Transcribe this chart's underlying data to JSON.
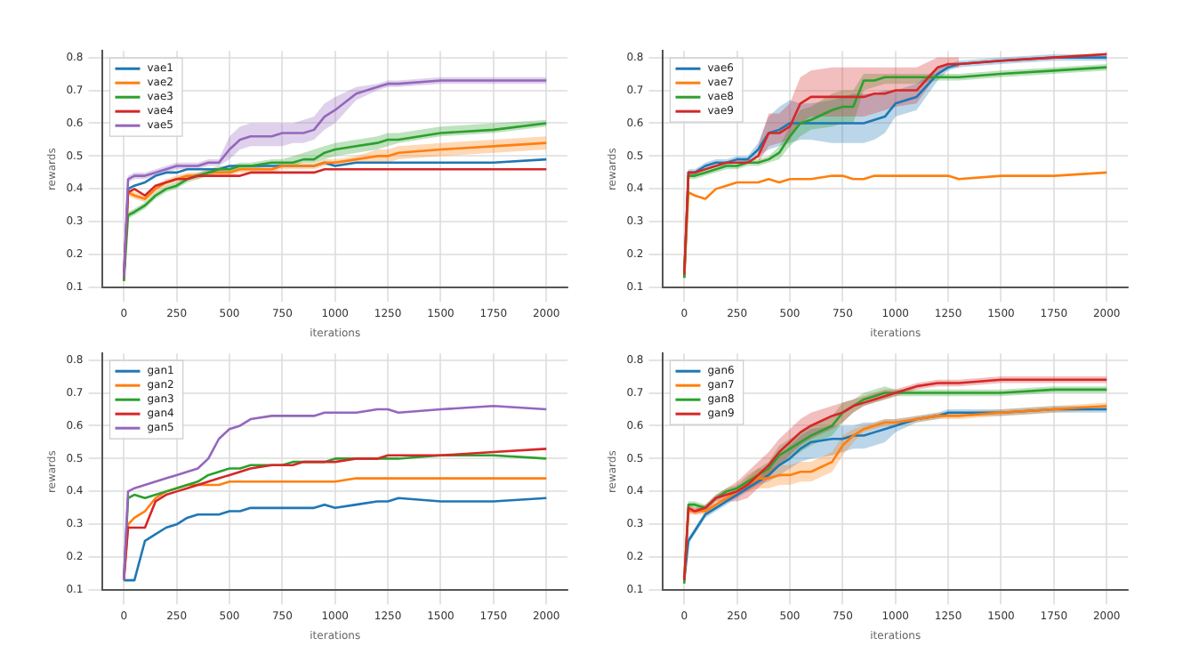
{
  "chart_data": [
    {
      "type": "line",
      "xlabel": "iterations",
      "ylabel": "rewards",
      "xlim": [
        -100,
        2100
      ],
      "ylim": [
        0.1,
        0.82
      ],
      "xticks": [
        0,
        250,
        500,
        750,
        1000,
        1250,
        1500,
        1750,
        2000
      ],
      "yticks": [
        0.1,
        0.2,
        0.3,
        0.4,
        0.5,
        0.6,
        0.7,
        0.8
      ],
      "grid": true,
      "legend": "top left",
      "marker": "none",
      "line_style": "solid",
      "x": [
        0,
        20,
        50,
        100,
        150,
        200,
        250,
        300,
        350,
        400,
        450,
        500,
        550,
        600,
        700,
        750,
        800,
        850,
        900,
        950,
        1000,
        1100,
        1200,
        1250,
        1300,
        1500,
        1750,
        2000
      ],
      "series": [
        {
          "name": "vae1",
          "color": "#1f77b4",
          "values": [
            0.13,
            0.4,
            0.41,
            0.42,
            0.44,
            0.45,
            0.45,
            0.46,
            0.46,
            0.46,
            0.46,
            0.47,
            0.47,
            0.47,
            0.47,
            0.47,
            0.47,
            0.47,
            0.47,
            0.48,
            0.47,
            0.48,
            0.48,
            0.48,
            0.48,
            0.48,
            0.48,
            0.49
          ]
        },
        {
          "name": "vae2",
          "color": "#ff7f0e",
          "values": [
            0.12,
            0.39,
            0.38,
            0.37,
            0.4,
            0.42,
            0.43,
            0.44,
            0.44,
            0.45,
            0.45,
            0.45,
            0.46,
            0.46,
            0.46,
            0.47,
            0.47,
            0.47,
            0.47,
            0.48,
            0.48,
            0.49,
            0.5,
            0.5,
            0.51,
            0.52,
            0.53,
            0.54
          ],
          "lower": [
            null,
            0.38,
            0.37,
            0.36,
            0.39,
            0.41,
            0.42,
            0.43,
            0.43,
            0.44,
            0.44,
            0.44,
            0.45,
            0.45,
            0.45,
            0.46,
            0.46,
            0.46,
            0.46,
            0.47,
            0.47,
            0.48,
            0.48,
            0.48,
            0.49,
            0.5,
            0.51,
            0.52
          ],
          "upper": [
            null,
            0.4,
            0.39,
            0.38,
            0.41,
            0.43,
            0.44,
            0.45,
            0.45,
            0.46,
            0.46,
            0.46,
            0.47,
            0.47,
            0.47,
            0.48,
            0.48,
            0.48,
            0.48,
            0.49,
            0.49,
            0.5,
            0.52,
            0.52,
            0.53,
            0.54,
            0.55,
            0.56
          ]
        },
        {
          "name": "vae3",
          "color": "#2ca02c",
          "values": [
            0.12,
            0.32,
            0.33,
            0.35,
            0.38,
            0.4,
            0.41,
            0.43,
            0.44,
            0.45,
            0.46,
            0.46,
            0.47,
            0.47,
            0.48,
            0.48,
            0.48,
            0.49,
            0.49,
            0.51,
            0.52,
            0.53,
            0.54,
            0.55,
            0.55,
            0.57,
            0.58,
            0.6
          ],
          "lower": [
            null,
            0.31,
            0.32,
            0.34,
            0.37,
            0.39,
            0.4,
            0.42,
            0.43,
            0.44,
            0.45,
            0.45,
            0.46,
            0.46,
            0.47,
            0.47,
            0.47,
            0.48,
            0.48,
            0.49,
            0.5,
            0.51,
            0.52,
            0.53,
            0.54,
            0.56,
            0.57,
            0.59
          ],
          "upper": [
            null,
            0.33,
            0.34,
            0.36,
            0.39,
            0.41,
            0.42,
            0.44,
            0.45,
            0.46,
            0.47,
            0.47,
            0.48,
            0.48,
            0.49,
            0.49,
            0.5,
            0.51,
            0.52,
            0.53,
            0.54,
            0.55,
            0.56,
            0.57,
            0.57,
            0.59,
            0.6,
            0.61
          ]
        },
        {
          "name": "vae4",
          "color": "#d62728",
          "values": [
            0.13,
            0.39,
            0.4,
            0.38,
            0.41,
            0.42,
            0.43,
            0.43,
            0.44,
            0.44,
            0.44,
            0.44,
            0.44,
            0.45,
            0.45,
            0.45,
            0.45,
            0.45,
            0.45,
            0.46,
            0.46,
            0.46,
            0.46,
            0.46,
            0.46,
            0.46,
            0.46,
            0.46
          ]
        },
        {
          "name": "vae5",
          "color": "#9467bd",
          "values": [
            0.13,
            0.43,
            0.44,
            0.44,
            0.45,
            0.46,
            0.47,
            0.47,
            0.47,
            0.48,
            0.48,
            0.52,
            0.55,
            0.56,
            0.56,
            0.57,
            0.57,
            0.57,
            0.58,
            0.62,
            0.64,
            0.69,
            0.71,
            0.72,
            0.72,
            0.73,
            0.73,
            0.73
          ],
          "lower": [
            null,
            0.42,
            0.43,
            0.43,
            0.44,
            0.45,
            0.46,
            0.46,
            0.46,
            0.47,
            0.47,
            0.49,
            0.52,
            0.53,
            0.53,
            0.53,
            0.54,
            0.54,
            0.55,
            0.58,
            0.6,
            0.67,
            0.7,
            0.71,
            0.71,
            0.72,
            0.72,
            0.72
          ],
          "upper": [
            null,
            0.44,
            0.45,
            0.45,
            0.46,
            0.47,
            0.48,
            0.48,
            0.48,
            0.49,
            0.49,
            0.56,
            0.59,
            0.6,
            0.6,
            0.6,
            0.6,
            0.61,
            0.62,
            0.66,
            0.68,
            0.71,
            0.72,
            0.73,
            0.73,
            0.74,
            0.74,
            0.74
          ]
        }
      ]
    },
    {
      "type": "line",
      "xlabel": "iterations",
      "ylabel": "rewards",
      "xlim": [
        -100,
        2100
      ],
      "ylim": [
        0.1,
        0.82
      ],
      "xticks": [
        0,
        250,
        500,
        750,
        1000,
        1250,
        1500,
        1750,
        2000
      ],
      "yticks": [
        0.1,
        0.2,
        0.3,
        0.4,
        0.5,
        0.6,
        0.7,
        0.8
      ],
      "grid": true,
      "legend": "top left",
      "marker": "none",
      "line_style": "solid",
      "x": [
        0,
        20,
        50,
        100,
        150,
        200,
        250,
        300,
        350,
        400,
        450,
        500,
        550,
        600,
        700,
        750,
        800,
        850,
        900,
        950,
        1000,
        1100,
        1200,
        1250,
        1300,
        1500,
        1750,
        2000
      ],
      "series": [
        {
          "name": "vae6",
          "color": "#1f77b4",
          "values": [
            0.13,
            0.45,
            0.45,
            0.47,
            0.48,
            0.48,
            0.49,
            0.49,
            0.52,
            0.57,
            0.58,
            0.6,
            0.6,
            0.6,
            0.6,
            0.6,
            0.6,
            0.6,
            0.61,
            0.62,
            0.66,
            0.68,
            0.75,
            0.77,
            0.78,
            0.79,
            0.8,
            0.8
          ],
          "lower": [
            null,
            0.44,
            0.44,
            0.46,
            0.47,
            0.47,
            0.48,
            0.48,
            0.5,
            0.52,
            0.53,
            0.54,
            0.55,
            0.55,
            0.54,
            0.54,
            0.54,
            0.54,
            0.55,
            0.57,
            0.62,
            0.64,
            0.73,
            0.76,
            0.77,
            0.78,
            0.79,
            0.79
          ],
          "upper": [
            null,
            0.46,
            0.46,
            0.48,
            0.49,
            0.49,
            0.5,
            0.5,
            0.54,
            0.62,
            0.65,
            0.67,
            0.66,
            0.66,
            0.67,
            0.68,
            0.69,
            0.69,
            0.69,
            0.7,
            0.7,
            0.72,
            0.77,
            0.78,
            0.79,
            0.8,
            0.81,
            0.81
          ]
        },
        {
          "name": "vae7",
          "color": "#ff7f0e",
          "values": [
            0.13,
            0.39,
            0.38,
            0.37,
            0.4,
            0.41,
            0.42,
            0.42,
            0.42,
            0.43,
            0.42,
            0.43,
            0.43,
            0.43,
            0.44,
            0.44,
            0.43,
            0.43,
            0.44,
            0.44,
            0.44,
            0.44,
            0.44,
            0.44,
            0.43,
            0.44,
            0.44,
            0.45
          ]
        },
        {
          "name": "vae8",
          "color": "#2ca02c",
          "values": [
            0.13,
            0.44,
            0.44,
            0.45,
            0.46,
            0.47,
            0.47,
            0.48,
            0.48,
            0.49,
            0.51,
            0.56,
            0.6,
            0.61,
            0.64,
            0.65,
            0.65,
            0.73,
            0.73,
            0.74,
            0.74,
            0.74,
            0.74,
            0.74,
            0.74,
            0.75,
            0.76,
            0.77
          ],
          "lower": [
            null,
            0.43,
            0.43,
            0.44,
            0.45,
            0.46,
            0.46,
            0.47,
            0.47,
            0.48,
            0.49,
            0.53,
            0.56,
            0.58,
            0.59,
            0.6,
            0.6,
            0.7,
            0.71,
            0.72,
            0.72,
            0.72,
            0.73,
            0.73,
            0.73,
            0.74,
            0.75,
            0.76
          ],
          "upper": [
            null,
            0.45,
            0.45,
            0.46,
            0.47,
            0.48,
            0.48,
            0.49,
            0.49,
            0.5,
            0.53,
            0.59,
            0.64,
            0.65,
            0.69,
            0.7,
            0.7,
            0.75,
            0.75,
            0.75,
            0.75,
            0.75,
            0.75,
            0.75,
            0.75,
            0.76,
            0.77,
            0.78
          ]
        },
        {
          "name": "vae9",
          "color": "#d62728",
          "values": [
            0.14,
            0.45,
            0.45,
            0.46,
            0.47,
            0.48,
            0.48,
            0.48,
            0.5,
            0.57,
            0.57,
            0.59,
            0.66,
            0.68,
            0.68,
            0.68,
            0.68,
            0.68,
            0.69,
            0.69,
            0.7,
            0.7,
            0.77,
            0.78,
            0.78,
            0.79,
            0.8,
            0.81
          ],
          "lower": [
            null,
            null,
            null,
            null,
            null,
            null,
            null,
            null,
            0.48,
            0.53,
            0.54,
            0.55,
            0.6,
            0.62,
            0.62,
            0.62,
            0.62,
            0.62,
            0.63,
            0.64,
            0.65,
            0.66,
            0.75,
            0.77,
            0.77,
            null,
            null,
            null
          ],
          "upper": [
            null,
            null,
            null,
            null,
            null,
            null,
            null,
            null,
            0.53,
            0.63,
            0.63,
            0.66,
            0.74,
            0.76,
            0.77,
            0.77,
            0.77,
            0.77,
            0.77,
            0.77,
            0.77,
            0.77,
            0.8,
            0.8,
            0.8,
            null,
            null,
            null
          ]
        }
      ]
    },
    {
      "type": "line",
      "xlabel": "iterations",
      "ylabel": "rewards",
      "xlim": [
        -100,
        2100
      ],
      "ylim": [
        0.1,
        0.82
      ],
      "xticks": [
        0,
        250,
        500,
        750,
        1000,
        1250,
        1500,
        1750,
        2000
      ],
      "yticks": [
        0.1,
        0.2,
        0.3,
        0.4,
        0.5,
        0.6,
        0.7,
        0.8
      ],
      "grid": true,
      "legend": "top left",
      "marker": "none",
      "line_style": "solid",
      "x": [
        0,
        20,
        50,
        100,
        150,
        200,
        250,
        300,
        350,
        400,
        450,
        500,
        550,
        600,
        700,
        750,
        800,
        850,
        900,
        950,
        1000,
        1100,
        1200,
        1250,
        1300,
        1500,
        1750,
        2000
      ],
      "series": [
        {
          "name": "gan1",
          "color": "#1f77b4",
          "values": [
            0.13,
            0.13,
            0.13,
            0.25,
            0.27,
            0.29,
            0.3,
            0.32,
            0.33,
            0.33,
            0.33,
            0.34,
            0.34,
            0.35,
            0.35,
            0.35,
            0.35,
            0.35,
            0.35,
            0.36,
            0.35,
            0.36,
            0.37,
            0.37,
            0.38,
            0.37,
            0.37,
            0.38
          ]
        },
        {
          "name": "gan2",
          "color": "#ff7f0e",
          "values": [
            0.13,
            0.3,
            0.32,
            0.34,
            0.38,
            0.4,
            0.41,
            0.42,
            0.42,
            0.42,
            0.42,
            0.43,
            0.43,
            0.43,
            0.43,
            0.43,
            0.43,
            0.43,
            0.43,
            0.43,
            0.43,
            0.44,
            0.44,
            0.44,
            0.44,
            0.44,
            0.44,
            0.44
          ]
        },
        {
          "name": "gan3",
          "color": "#2ca02c",
          "values": [
            0.13,
            0.38,
            0.39,
            0.38,
            0.39,
            0.4,
            0.41,
            0.42,
            0.43,
            0.45,
            0.46,
            0.47,
            0.47,
            0.48,
            0.48,
            0.48,
            0.49,
            0.49,
            0.49,
            0.49,
            0.5,
            0.5,
            0.5,
            0.5,
            0.5,
            0.51,
            0.51,
            0.5
          ]
        },
        {
          "name": "gan4",
          "color": "#d62728",
          "values": [
            0.13,
            0.29,
            0.29,
            0.29,
            0.37,
            0.39,
            0.4,
            0.41,
            0.42,
            0.43,
            0.44,
            0.45,
            0.46,
            0.47,
            0.48,
            0.48,
            0.48,
            0.49,
            0.49,
            0.49,
            0.49,
            0.5,
            0.5,
            0.51,
            0.51,
            0.51,
            0.52,
            0.53
          ]
        },
        {
          "name": "gan5",
          "color": "#9467bd",
          "values": [
            0.13,
            0.4,
            0.41,
            0.42,
            0.43,
            0.44,
            0.45,
            0.46,
            0.47,
            0.5,
            0.56,
            0.59,
            0.6,
            0.62,
            0.63,
            0.63,
            0.63,
            0.63,
            0.63,
            0.64,
            0.64,
            0.64,
            0.65,
            0.65,
            0.64,
            0.65,
            0.66,
            0.65
          ]
        }
      ]
    },
    {
      "type": "line",
      "xlabel": "iterations",
      "ylabel": "rewards",
      "xlim": [
        -100,
        2100
      ],
      "ylim": [
        0.1,
        0.82
      ],
      "xticks": [
        0,
        250,
        500,
        750,
        1000,
        1250,
        1500,
        1750,
        2000
      ],
      "yticks": [
        0.1,
        0.2,
        0.3,
        0.4,
        0.5,
        0.6,
        0.7,
        0.8
      ],
      "grid": true,
      "legend": "top left",
      "marker": "none",
      "line_style": "solid",
      "x": [
        0,
        20,
        50,
        100,
        150,
        200,
        250,
        300,
        350,
        400,
        450,
        500,
        550,
        600,
        700,
        750,
        800,
        850,
        900,
        950,
        1000,
        1100,
        1200,
        1250,
        1300,
        1500,
        1750,
        2000
      ],
      "series": [
        {
          "name": "gan6",
          "color": "#1f77b4",
          "values": [
            0.13,
            0.25,
            0.28,
            0.33,
            0.35,
            0.37,
            0.39,
            0.41,
            0.43,
            0.45,
            0.48,
            0.5,
            0.53,
            0.55,
            0.56,
            0.56,
            0.57,
            0.57,
            0.58,
            0.59,
            0.6,
            0.62,
            0.63,
            0.64,
            0.64,
            0.64,
            0.65,
            0.65
          ],
          "lower": [
            null,
            0.24,
            0.27,
            0.32,
            0.34,
            0.36,
            0.38,
            0.4,
            0.42,
            0.43,
            0.45,
            0.47,
            0.49,
            0.5,
            0.51,
            0.52,
            0.53,
            0.53,
            0.54,
            0.55,
            0.58,
            0.61,
            0.62,
            0.63,
            0.63,
            0.63,
            0.64,
            0.64
          ],
          "upper": [
            null,
            0.26,
            0.29,
            0.34,
            0.36,
            0.38,
            0.4,
            0.42,
            0.44,
            0.47,
            0.51,
            0.54,
            0.57,
            0.59,
            0.6,
            0.6,
            0.6,
            0.61,
            0.61,
            0.62,
            0.62,
            0.63,
            0.64,
            0.65,
            0.65,
            0.65,
            0.66,
            0.66
          ]
        },
        {
          "name": "gan7",
          "color": "#ff7f0e",
          "values": [
            0.13,
            0.34,
            0.34,
            0.34,
            0.36,
            0.38,
            0.4,
            0.42,
            0.44,
            0.44,
            0.45,
            0.45,
            0.46,
            0.46,
            0.49,
            0.54,
            0.57,
            0.59,
            0.6,
            0.61,
            0.61,
            0.62,
            0.63,
            0.63,
            0.63,
            0.64,
            0.65,
            0.66
          ],
          "lower": [
            null,
            0.33,
            0.33,
            0.33,
            0.35,
            0.37,
            0.39,
            0.4,
            0.41,
            0.41,
            0.42,
            0.42,
            0.43,
            0.43,
            0.46,
            0.51,
            0.55,
            0.58,
            0.59,
            0.6,
            0.6,
            0.61,
            0.62,
            0.62,
            0.62,
            0.63,
            0.64,
            0.65
          ],
          "upper": [
            null,
            0.35,
            0.35,
            0.35,
            0.37,
            0.39,
            0.41,
            0.44,
            0.47,
            0.47,
            0.48,
            0.48,
            0.49,
            0.49,
            0.52,
            0.57,
            0.59,
            0.6,
            0.61,
            0.62,
            0.62,
            0.63,
            0.64,
            0.64,
            0.64,
            0.65,
            0.66,
            0.67
          ]
        },
        {
          "name": "gan8",
          "color": "#2ca02c",
          "values": [
            0.12,
            0.36,
            0.36,
            0.35,
            0.38,
            0.4,
            0.41,
            0.43,
            0.45,
            0.47,
            0.51,
            0.53,
            0.55,
            0.57,
            0.6,
            0.64,
            0.66,
            0.68,
            0.69,
            0.7,
            0.7,
            0.7,
            0.7,
            0.7,
            0.7,
            0.7,
            0.71,
            0.71
          ],
          "lower": [
            null,
            0.35,
            0.35,
            0.34,
            0.37,
            0.39,
            0.4,
            0.41,
            0.43,
            0.45,
            0.48,
            0.5,
            0.52,
            0.54,
            0.57,
            0.61,
            0.64,
            0.66,
            0.67,
            0.68,
            0.69,
            0.69,
            0.69,
            0.69,
            0.69,
            0.69,
            0.7,
            0.7
          ],
          "upper": [
            null,
            0.37,
            0.37,
            0.36,
            0.39,
            0.41,
            0.42,
            0.45,
            0.47,
            0.49,
            0.54,
            0.56,
            0.58,
            0.6,
            0.63,
            0.67,
            0.68,
            0.7,
            0.71,
            0.72,
            0.71,
            0.71,
            0.71,
            0.71,
            0.71,
            0.71,
            0.72,
            0.72
          ]
        },
        {
          "name": "gan9",
          "color": "#d62728",
          "values": [
            0.13,
            0.35,
            0.34,
            0.35,
            0.38,
            0.39,
            0.4,
            0.42,
            0.45,
            0.48,
            0.52,
            0.55,
            0.58,
            0.6,
            0.63,
            0.64,
            0.66,
            0.67,
            0.68,
            0.69,
            0.7,
            0.72,
            0.73,
            0.73,
            0.73,
            0.74,
            0.74,
            0.74
          ],
          "lower": [
            null,
            0.34,
            0.33,
            0.34,
            0.37,
            0.37,
            0.37,
            0.38,
            0.41,
            0.44,
            0.48,
            0.51,
            0.54,
            0.56,
            0.59,
            0.61,
            0.64,
            0.66,
            0.67,
            0.68,
            0.69,
            0.71,
            0.72,
            0.72,
            0.72,
            0.73,
            0.73,
            0.73
          ],
          "upper": [
            null,
            0.36,
            0.35,
            0.36,
            0.39,
            0.41,
            0.43,
            0.46,
            0.49,
            0.52,
            0.56,
            0.59,
            0.62,
            0.64,
            0.66,
            0.67,
            0.68,
            0.69,
            0.7,
            0.71,
            0.71,
            0.73,
            0.74,
            0.74,
            0.74,
            0.75,
            0.75,
            0.75
          ]
        }
      ]
    }
  ]
}
